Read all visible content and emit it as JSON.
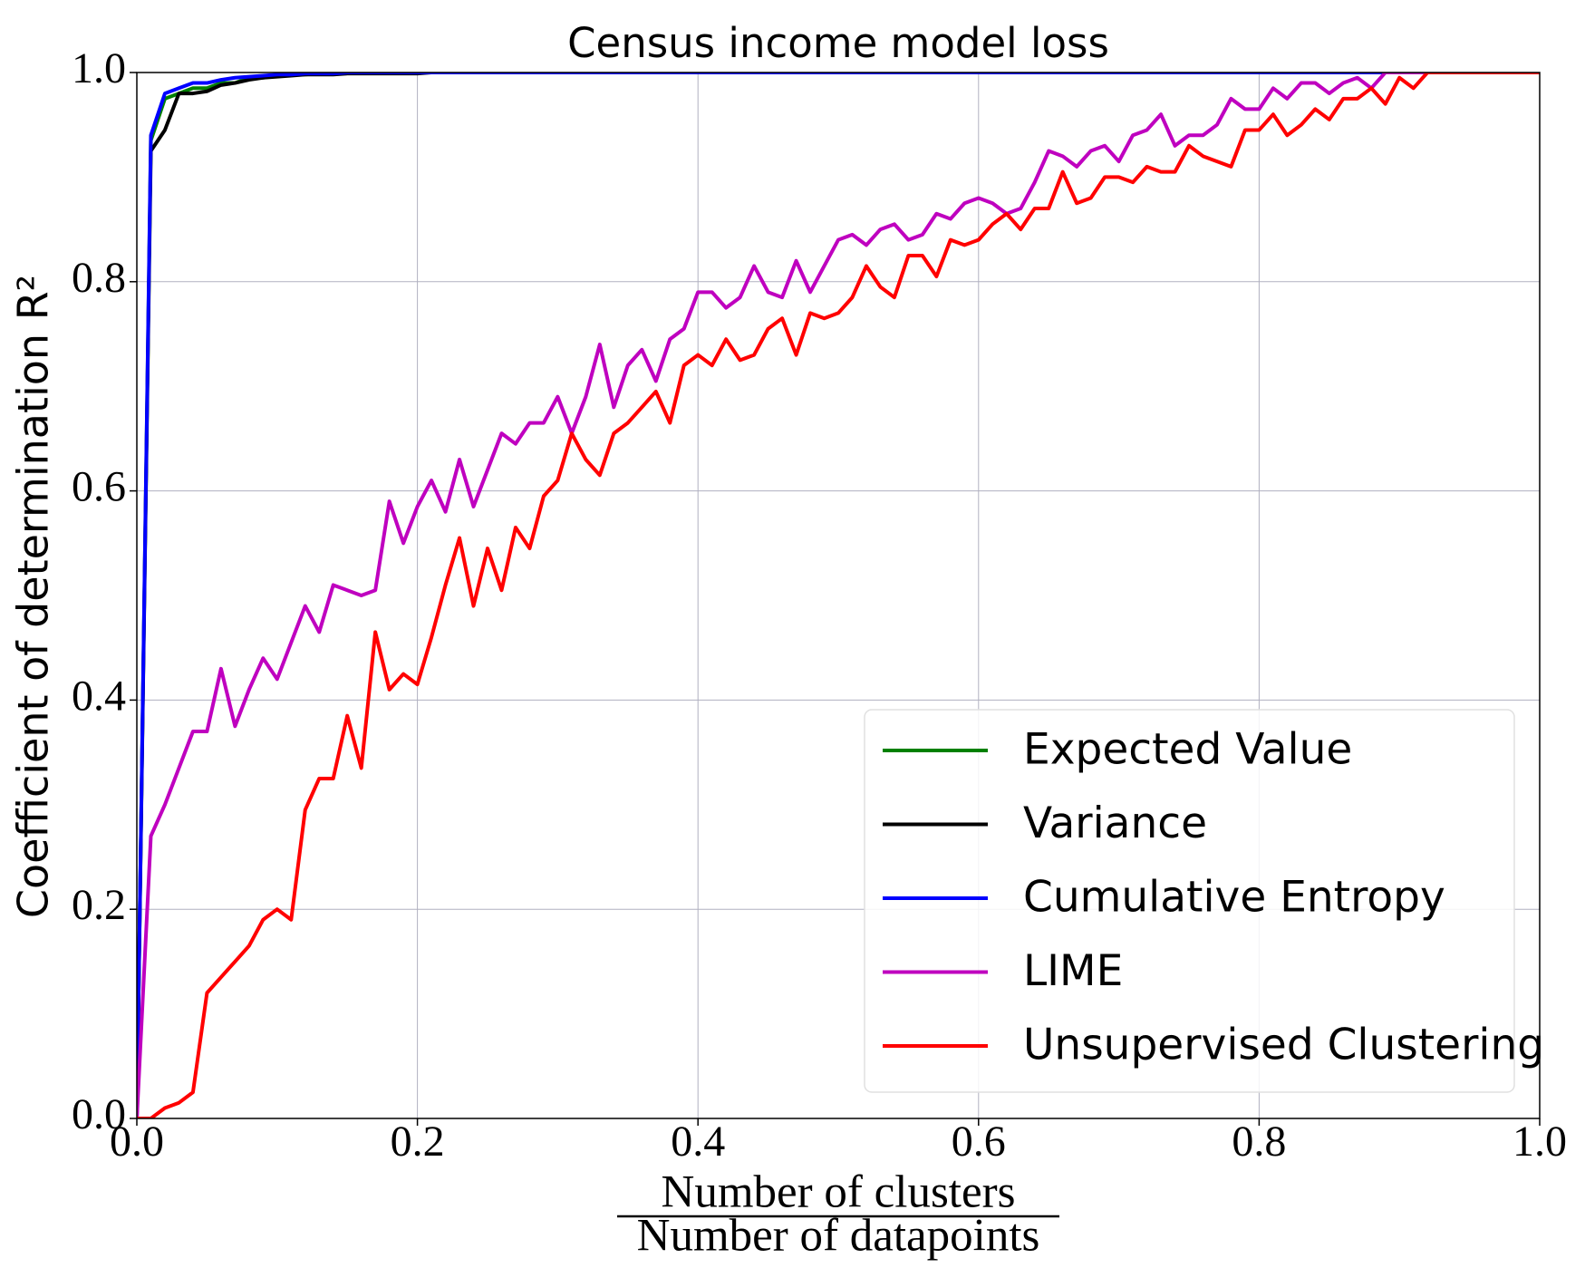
{
  "chart_data": {
    "type": "line",
    "title": "Census income model loss",
    "xlabel": {
      "numerator": "Number of clusters",
      "denominator": "Number of datapoints"
    },
    "ylabel": "Coefficient of determination R²",
    "x": [
      0,
      0.01,
      0.02,
      0.03,
      0.04,
      0.05,
      0.06,
      0.07,
      0.08,
      0.09,
      0.1,
      0.11,
      0.12,
      0.13,
      0.14,
      0.15,
      0.16,
      0.17,
      0.18,
      0.19,
      0.2,
      0.21,
      0.22,
      0.23,
      0.24,
      0.25,
      0.26,
      0.27,
      0.28,
      0.29,
      0.3,
      0.31,
      0.32,
      0.33,
      0.34,
      0.35,
      0.36,
      0.37,
      0.38,
      0.39,
      0.4,
      0.41,
      0.42,
      0.43,
      0.44,
      0.45,
      0.46,
      0.47,
      0.48,
      0.49,
      0.5,
      0.51,
      0.52,
      0.53,
      0.54,
      0.55,
      0.56,
      0.57,
      0.58,
      0.59,
      0.6,
      0.61,
      0.62,
      0.63,
      0.64,
      0.65,
      0.66,
      0.67,
      0.68,
      0.69,
      0.7,
      0.71,
      0.72,
      0.73,
      0.74,
      0.75,
      0.76,
      0.77,
      0.78,
      0.79,
      0.8,
      0.81,
      0.82,
      0.83,
      0.84,
      0.85,
      0.86,
      0.87,
      0.88,
      0.89,
      0.9,
      0.91,
      0.92,
      0.93,
      0.94,
      0.95,
      0.96,
      0.97,
      0.98,
      0.99,
      1
    ],
    "series": [
      {
        "name": "Expected Value",
        "color": "#008000",
        "values": [
          0,
          0.935,
          0.975,
          0.98,
          0.985,
          0.985,
          0.99,
          0.99,
          0.995,
          0.995,
          0.997,
          0.998,
          0.998,
          0.999,
          0.999,
          1,
          1,
          1,
          1,
          1,
          1,
          1,
          1,
          1,
          1,
          1,
          1,
          1,
          1,
          1,
          1,
          1,
          1,
          1,
          1,
          1,
          1,
          1,
          1,
          1,
          1,
          1,
          1,
          1,
          1,
          1,
          1,
          1,
          1,
          1,
          1,
          1,
          1,
          1,
          1,
          1,
          1,
          1,
          1,
          1,
          1,
          1,
          1,
          1,
          1,
          1,
          1,
          1,
          1,
          1,
          1,
          1,
          1,
          1,
          1,
          1,
          1,
          1,
          1,
          1,
          1,
          1,
          1,
          1,
          1,
          1,
          1,
          1,
          1,
          1,
          1,
          1,
          1,
          1,
          1,
          1,
          1,
          1,
          1,
          1,
          1
        ]
      },
      {
        "name": "Variance",
        "color": "#000000",
        "values": [
          0,
          0.925,
          0.945,
          0.98,
          0.98,
          0.982,
          0.988,
          0.99,
          0.993,
          0.995,
          0.996,
          0.997,
          0.998,
          0.998,
          0.998,
          0.999,
          0.999,
          0.999,
          0.999,
          0.999,
          0.999,
          1,
          1,
          1,
          1,
          1,
          1,
          1,
          1,
          1,
          1,
          1,
          1,
          1,
          1,
          1,
          1,
          1,
          1,
          1,
          1,
          1,
          1,
          1,
          1,
          1,
          1,
          1,
          1,
          1,
          1,
          1,
          1,
          1,
          1,
          1,
          1,
          1,
          1,
          1,
          1,
          1,
          1,
          1,
          1,
          1,
          1,
          1,
          1,
          1,
          1,
          1,
          1,
          1,
          1,
          1,
          1,
          1,
          1,
          1,
          1,
          1,
          1,
          1,
          1,
          1,
          1,
          1,
          1,
          1,
          1,
          1,
          1,
          1,
          1,
          1,
          1,
          1,
          1,
          1,
          1
        ]
      },
      {
        "name": "Cumulative Entropy",
        "color": "#0000ff",
        "values": [
          0,
          0.94,
          0.98,
          0.985,
          0.99,
          0.99,
          0.993,
          0.995,
          0.996,
          0.997,
          0.998,
          0.998,
          0.999,
          0.999,
          0.999,
          1,
          1,
          1,
          1,
          1,
          1,
          1,
          1,
          1,
          1,
          1,
          1,
          1,
          1,
          1,
          1,
          1,
          1,
          1,
          1,
          1,
          1,
          1,
          1,
          1,
          1,
          1,
          1,
          1,
          1,
          1,
          1,
          1,
          1,
          1,
          1,
          1,
          1,
          1,
          1,
          1,
          1,
          1,
          1,
          1,
          1,
          1,
          1,
          1,
          1,
          1,
          1,
          1,
          1,
          1,
          1,
          1,
          1,
          1,
          1,
          1,
          1,
          1,
          1,
          1,
          1,
          1,
          1,
          1,
          1,
          1,
          1,
          1,
          1,
          1,
          1,
          1,
          1,
          1,
          1,
          1,
          1,
          1,
          1,
          1,
          1
        ]
      },
      {
        "name": "LIME",
        "color": "#bf00bf",
        "values": [
          0,
          0.27,
          0.3,
          0.335,
          0.37,
          0.37,
          0.43,
          0.375,
          0.41,
          0.44,
          0.42,
          0.455,
          0.49,
          0.465,
          0.51,
          0.505,
          0.5,
          0.505,
          0.59,
          0.55,
          0.585,
          0.61,
          0.58,
          0.63,
          0.585,
          0.62,
          0.655,
          0.645,
          0.665,
          0.665,
          0.69,
          0.655,
          0.69,
          0.74,
          0.68,
          0.72,
          0.735,
          0.705,
          0.745,
          0.755,
          0.79,
          0.79,
          0.775,
          0.785,
          0.815,
          0.79,
          0.785,
          0.82,
          0.79,
          0.815,
          0.84,
          0.845,
          0.835,
          0.85,
          0.855,
          0.84,
          0.845,
          0.865,
          0.86,
          0.875,
          0.88,
          0.875,
          0.865,
          0.87,
          0.895,
          0.925,
          0.92,
          0.91,
          0.925,
          0.93,
          0.915,
          0.94,
          0.945,
          0.96,
          0.93,
          0.94,
          0.94,
          0.95,
          0.975,
          0.965,
          0.965,
          0.985,
          0.975,
          0.99,
          0.99,
          0.98,
          0.99,
          0.995,
          0.985,
          1,
          1,
          1,
          1,
          1,
          1,
          1,
          1,
          1,
          1,
          1,
          1
        ]
      },
      {
        "name": "Unsupervised Clustering",
        "color": "#ff0000",
        "values": [
          0,
          0,
          0.01,
          0.015,
          0.025,
          0.12,
          0.135,
          0.15,
          0.165,
          0.19,
          0.2,
          0.19,
          0.295,
          0.325,
          0.325,
          0.385,
          0.335,
          0.465,
          0.41,
          0.425,
          0.415,
          0.46,
          0.51,
          0.555,
          0.49,
          0.545,
          0.505,
          0.565,
          0.545,
          0.595,
          0.61,
          0.655,
          0.63,
          0.615,
          0.655,
          0.665,
          0.68,
          0.695,
          0.665,
          0.72,
          0.73,
          0.72,
          0.745,
          0.725,
          0.73,
          0.755,
          0.765,
          0.73,
          0.77,
          0.765,
          0.77,
          0.785,
          0.815,
          0.795,
          0.785,
          0.825,
          0.825,
          0.805,
          0.84,
          0.835,
          0.84,
          0.855,
          0.865,
          0.85,
          0.87,
          0.87,
          0.905,
          0.875,
          0.88,
          0.9,
          0.9,
          0.895,
          0.91,
          0.905,
          0.905,
          0.93,
          0.92,
          0.915,
          0.91,
          0.945,
          0.945,
          0.96,
          0.94,
          0.95,
          0.965,
          0.955,
          0.975,
          0.975,
          0.985,
          0.97,
          0.995,
          0.985,
          1,
          1,
          1,
          1,
          1,
          1,
          1,
          1,
          1
        ]
      }
    ],
    "xlim": [
      0,
      1
    ],
    "ylim": [
      0,
      1
    ],
    "xticks": [
      {
        "value": 0,
        "label": "0.0"
      },
      0.2,
      0.4,
      0.6,
      0.8,
      {
        "value": 1,
        "label": "1.0"
      }
    ],
    "yticks": [
      {
        "value": 0,
        "label": "0.0"
      },
      0.2,
      0.4,
      0.6,
      0.8,
      {
        "value": 1,
        "label": "1.0"
      }
    ],
    "grid": true,
    "legend": "lower right"
  }
}
